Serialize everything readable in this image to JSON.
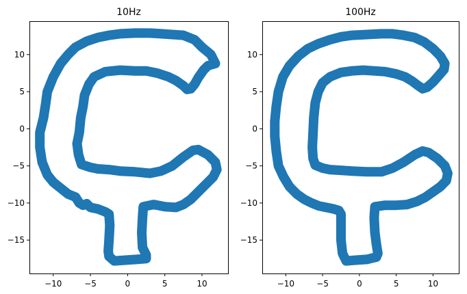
{
  "figure": {
    "background": "#ffffff"
  },
  "chart_data": [
    {
      "type": "scatter",
      "title": "10Hz",
      "xlabel": "",
      "ylabel": "",
      "xlim": [
        -13.2,
        13.5
      ],
      "ylim": [
        -19.5,
        14.5
      ],
      "xticks": [
        -10,
        -5,
        0,
        5,
        10
      ],
      "yticks": [
        10,
        5,
        0,
        -5,
        -10,
        -15
      ],
      "xtick_labels": [
        "−10",
        "−5",
        "0",
        "5",
        "10"
      ],
      "ytick_labels": [
        "10",
        "5",
        "0",
        "−5",
        "−10",
        "−15"
      ],
      "grid": false,
      "color": "#1f77b4",
      "series": [
        {
          "x": [
            -1.8,
            -0.3,
            1.2,
            2.5,
            2.5,
            2.0,
            1.9,
            2.0,
            2.1,
            3.5,
            5.0,
            6.5,
            7.5,
            8.5,
            9.5,
            10.5,
            11.5,
            12.0,
            11.8,
            10.8,
            9.5,
            8.8,
            7.5,
            6.0,
            4.5,
            3.0,
            1.0,
            -1.0,
            -2.5,
            -4.0,
            -5.0,
            -6.2,
            -6.6,
            -6.8,
            -6.5,
            -6.3,
            -6.0,
            -5.8,
            -5.2,
            -4.5,
            -3.0,
            -1.0,
            1.0,
            2.5,
            4.0,
            5.5,
            6.5,
            7.5,
            8.0,
            8.5,
            9.0,
            9.5,
            10.2,
            10.8,
            11.8,
            11.2,
            10.0,
            9.0,
            7.5,
            6.0,
            4.5,
            3.0,
            1.0,
            -1.0,
            -2.5,
            -4.0,
            -5.5,
            -7.0,
            -8.0,
            -9.0,
            -10.0,
            -10.8,
            -11.0,
            -11.3,
            -11.8,
            -11.8,
            -11.5,
            -10.8,
            -10.0,
            -9.0,
            -8.0,
            -7.0,
            -6.5,
            -6.0,
            -5.5,
            -5.0,
            -4.0,
            -3.0,
            -2.5,
            -2.4,
            -2.5,
            -2.6,
            -2.5,
            -1.8
          ],
          "y": [
            -17.8,
            -17.7,
            -17.6,
            -17.5,
            -17.0,
            -16.0,
            -14.0,
            -12.0,
            -10.5,
            -10.2,
            -10.5,
            -10.6,
            -10.2,
            -9.5,
            -8.5,
            -7.5,
            -6.5,
            -5.5,
            -4.5,
            -3.5,
            -2.8,
            -2.9,
            -3.8,
            -5.0,
            -5.7,
            -6.0,
            -5.8,
            -5.7,
            -5.5,
            -5.4,
            -5.2,
            -4.8,
            -3.5,
            -2.0,
            -0.5,
            1.5,
            3.0,
            4.5,
            6.0,
            7.0,
            7.7,
            7.9,
            7.8,
            7.8,
            7.5,
            7.0,
            6.5,
            5.8,
            5.3,
            5.4,
            6.0,
            6.9,
            7.9,
            8.5,
            8.8,
            10.0,
            11.0,
            12.0,
            12.6,
            12.7,
            12.8,
            12.9,
            12.9,
            12.8,
            12.6,
            12.3,
            11.8,
            11.0,
            10.0,
            8.8,
            7.0,
            5.0,
            3.5,
            1.5,
            -0.5,
            -2.5,
            -4.5,
            -6.2,
            -7.2,
            -8.0,
            -8.8,
            -9.2,
            -10.0,
            -10.3,
            -10.1,
            -10.6,
            -10.8,
            -11.2,
            -11.5,
            -13.0,
            -15.0,
            -16.5,
            -17.2,
            -17.8
          ]
        }
      ]
    },
    {
      "type": "scatter",
      "title": "100Hz",
      "xlabel": "",
      "ylabel": "",
      "xlim": [
        -13.2,
        13.5
      ],
      "ylim": [
        -19.5,
        14.5
      ],
      "xticks": [
        -10,
        -5,
        0,
        5,
        10
      ],
      "yticks": [
        10,
        5,
        0,
        -5,
        -10,
        -15
      ],
      "xtick_labels": [
        "−10",
        "−5",
        "0",
        "5",
        "10"
      ],
      "ytick_labels": [
        "10",
        "5",
        "0",
        "−5",
        "−10",
        "−15"
      ],
      "grid": false,
      "color": "#1f77b4",
      "series": [
        {
          "x": [
            -1.8,
            -0.5,
            1.0,
            2.3,
            2.5,
            2.3,
            2.1,
            2.0,
            2.1,
            3.5,
            5.0,
            6.5,
            7.8,
            9.0,
            10.0,
            11.0,
            11.8,
            12.0,
            11.6,
            10.6,
            9.4,
            8.6,
            7.5,
            6.0,
            4.5,
            3.0,
            1.0,
            -1.0,
            -2.5,
            -4.0,
            -5.0,
            -6.0,
            -6.3,
            -6.4,
            -6.3,
            -6.2,
            -6.0,
            -5.6,
            -5.0,
            -4.0,
            -2.5,
            -1.0,
            0.5,
            2.0,
            3.5,
            5.0,
            6.2,
            7.2,
            8.0,
            8.6,
            9.2,
            10.0,
            10.8,
            11.5,
            11.6,
            11.0,
            10.0,
            8.8,
            7.5,
            6.0,
            4.5,
            3.0,
            1.0,
            -1.0,
            -2.5,
            -4.0,
            -5.5,
            -7.0,
            -8.3,
            -9.5,
            -10.4,
            -11.0,
            -11.3,
            -11.5,
            -11.5,
            -11.3,
            -11.0,
            -10.3,
            -9.5,
            -8.5,
            -7.5,
            -6.5,
            -5.5,
            -4.5,
            -3.5,
            -2.8,
            -2.5,
            -2.5,
            -2.5,
            -2.3,
            -1.8
          ],
          "y": [
            -17.8,
            -17.7,
            -17.6,
            -17.3,
            -16.8,
            -15.5,
            -14.0,
            -12.0,
            -10.5,
            -10.3,
            -10.3,
            -10.2,
            -9.8,
            -9.2,
            -8.5,
            -7.8,
            -7.0,
            -6.0,
            -5.0,
            -4.0,
            -3.2,
            -3.0,
            -3.5,
            -4.5,
            -5.3,
            -5.8,
            -5.8,
            -5.7,
            -5.6,
            -5.5,
            -5.3,
            -4.9,
            -4.0,
            -2.5,
            -0.5,
            1.5,
            3.5,
            5.0,
            6.2,
            7.0,
            7.6,
            7.8,
            7.9,
            7.8,
            7.7,
            7.4,
            7.0,
            6.4,
            5.8,
            5.4,
            5.6,
            6.3,
            7.2,
            8.0,
            8.8,
            9.8,
            10.8,
            11.7,
            12.3,
            12.6,
            12.8,
            12.8,
            12.7,
            12.6,
            12.4,
            12.0,
            11.5,
            10.8,
            9.8,
            8.5,
            7.0,
            5.0,
            3.0,
            1.0,
            -1.0,
            -3.0,
            -5.0,
            -6.5,
            -7.8,
            -8.8,
            -9.5,
            -10.0,
            -10.4,
            -10.6,
            -10.8,
            -11.0,
            -11.5,
            -13.0,
            -15.0,
            -16.8,
            -17.8
          ]
        }
      ]
    }
  ]
}
